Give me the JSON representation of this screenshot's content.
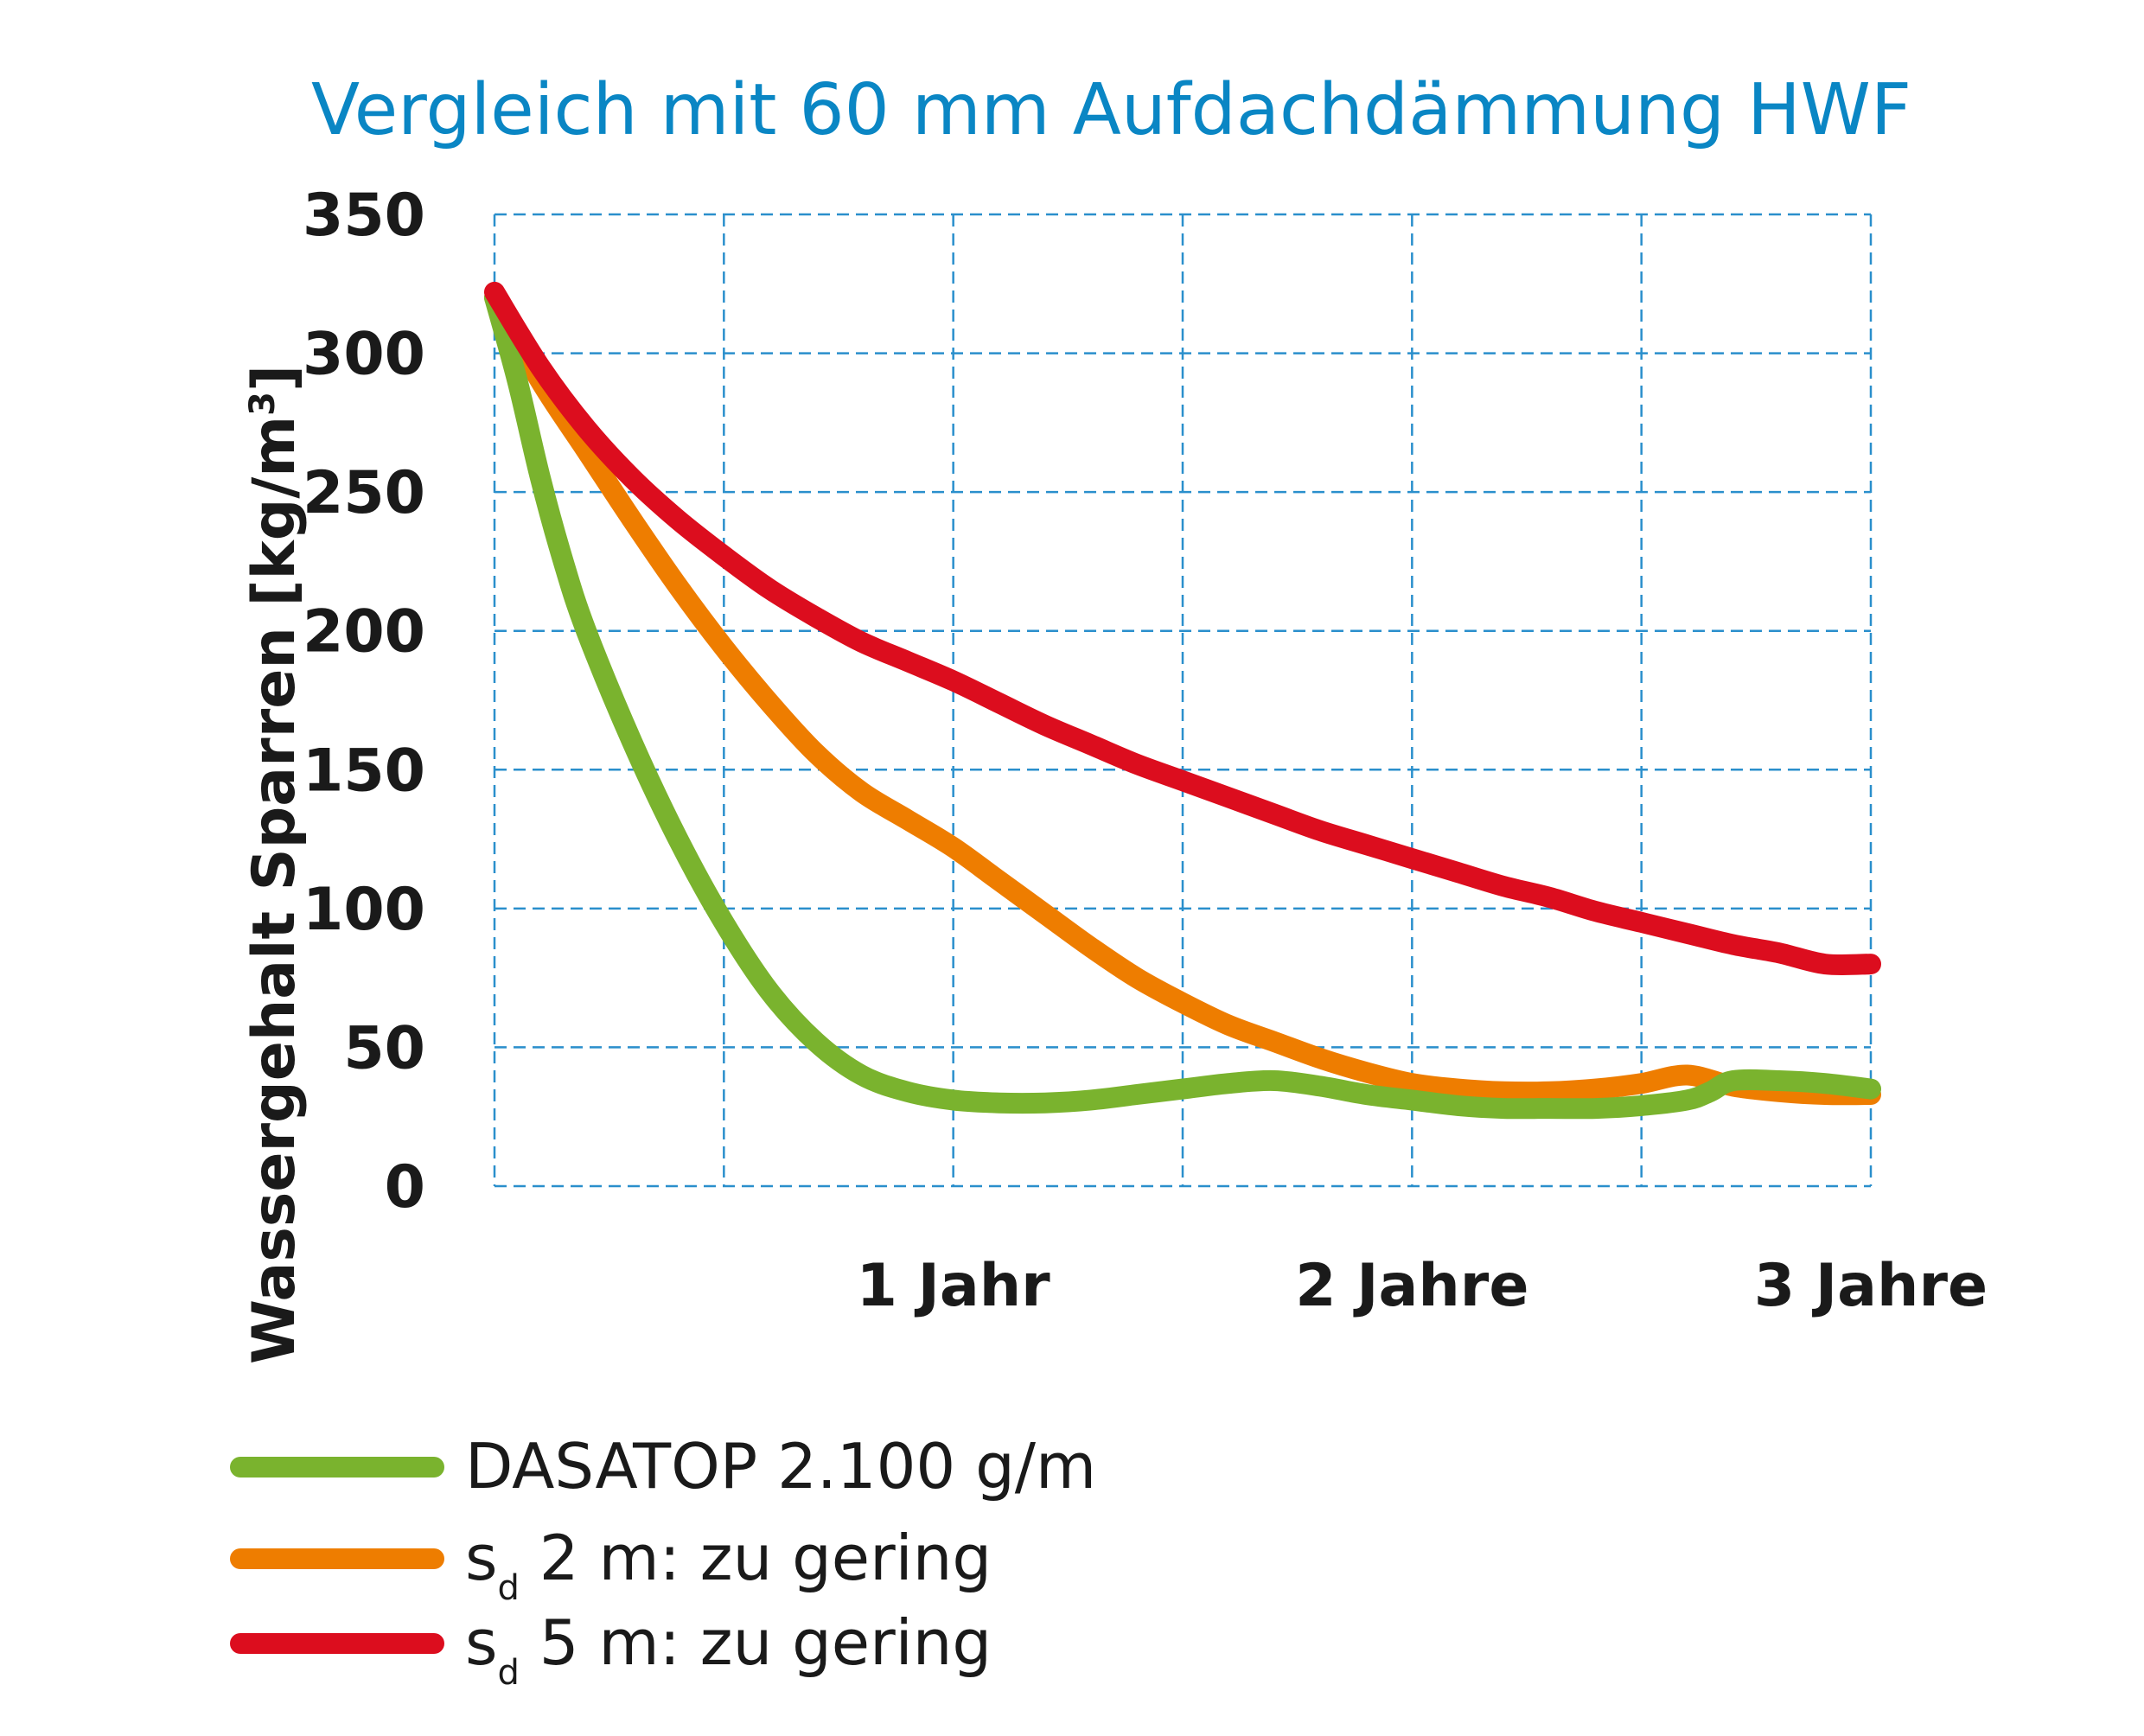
{
  "chart_data": {
    "type": "line",
    "title": "Vergleich mit 60 mm Aufdachdämmung HWF",
    "ylabel": "Wassergehalt Sparren [kg/m",
    "ylabel_sup": "3",
    "ylabel_end": "]",
    "xlabel": "",
    "ylim": [
      0,
      350
    ],
    "xlim": [
      0,
      3
    ],
    "yticks": [
      0,
      50,
      100,
      150,
      200,
      250,
      300,
      350
    ],
    "ytick_labels": [
      "0",
      "50",
      "100",
      "150",
      "200",
      "250",
      "300",
      "350"
    ],
    "xgrid": [
      0,
      0.5,
      1,
      1.5,
      2,
      2.5,
      3
    ],
    "xticks": [
      1,
      2,
      3
    ],
    "xtick_labels": [
      "1 Jahr",
      "2 Jahre",
      "3 Jahre"
    ],
    "grid": true,
    "grid_color": "#2a8fcc",
    "series": [
      {
        "name": "DASATOP 2.100 g/m",
        "legend_main": "DASATOP 2.100 g/m",
        "color": "#7ab32e",
        "points": [
          [
            0,
            320
          ],
          [
            0.05,
            290
          ],
          [
            0.1,
            255
          ],
          [
            0.15,
            225
          ],
          [
            0.2,
            200
          ],
          [
            0.3,
            160
          ],
          [
            0.4,
            125
          ],
          [
            0.5,
            95
          ],
          [
            0.6,
            70
          ],
          [
            0.7,
            52
          ],
          [
            0.8,
            40
          ],
          [
            0.9,
            34
          ],
          [
            1.0,
            31
          ],
          [
            1.1,
            30
          ],
          [
            1.2,
            30
          ],
          [
            1.3,
            31
          ],
          [
            1.4,
            33
          ],
          [
            1.5,
            35
          ],
          [
            1.6,
            37
          ],
          [
            1.7,
            38
          ],
          [
            1.8,
            36
          ],
          [
            1.9,
            33
          ],
          [
            2.0,
            31
          ],
          [
            2.1,
            29
          ],
          [
            2.2,
            28
          ],
          [
            2.3,
            28
          ],
          [
            2.4,
            28
          ],
          [
            2.5,
            29
          ],
          [
            2.6,
            31
          ],
          [
            2.65,
            34
          ],
          [
            2.7,
            38
          ],
          [
            2.8,
            38
          ],
          [
            2.9,
            37
          ],
          [
            3.0,
            35
          ]
        ]
      },
      {
        "name": "sd 2 m: zu gering",
        "legend_main": "s",
        "legend_sub": "d",
        "legend_rest": " 2 m: zu gering",
        "color": "#ee7d00",
        "points": [
          [
            0,
            320
          ],
          [
            0.1,
            290
          ],
          [
            0.2,
            265
          ],
          [
            0.3,
            240
          ],
          [
            0.4,
            216
          ],
          [
            0.5,
            194
          ],
          [
            0.6,
            174
          ],
          [
            0.7,
            156
          ],
          [
            0.8,
            142
          ],
          [
            0.9,
            132
          ],
          [
            1.0,
            122
          ],
          [
            1.1,
            110
          ],
          [
            1.2,
            98
          ],
          [
            1.3,
            86
          ],
          [
            1.4,
            75
          ],
          [
            1.5,
            66
          ],
          [
            1.6,
            58
          ],
          [
            1.7,
            52
          ],
          [
            1.8,
            46
          ],
          [
            1.9,
            41
          ],
          [
            2.0,
            37
          ],
          [
            2.1,
            35
          ],
          [
            2.2,
            34
          ],
          [
            2.3,
            34
          ],
          [
            2.4,
            35
          ],
          [
            2.5,
            37
          ],
          [
            2.6,
            40
          ],
          [
            2.7,
            36
          ],
          [
            2.8,
            34
          ],
          [
            2.9,
            33
          ],
          [
            3.0,
            33
          ]
        ]
      },
      {
        "name": "sd 5 m: zu gering",
        "legend_main": "s",
        "legend_sub": "d",
        "legend_rest": " 5 m: zu gering",
        "color": "#dc0d1e",
        "points": [
          [
            0,
            322
          ],
          [
            0.1,
            295
          ],
          [
            0.2,
            273
          ],
          [
            0.3,
            255
          ],
          [
            0.4,
            240
          ],
          [
            0.5,
            227
          ],
          [
            0.6,
            215
          ],
          [
            0.7,
            205
          ],
          [
            0.8,
            196
          ],
          [
            0.9,
            189
          ],
          [
            1.0,
            182
          ],
          [
            1.1,
            174
          ],
          [
            1.2,
            166
          ],
          [
            1.3,
            159
          ],
          [
            1.4,
            152
          ],
          [
            1.5,
            146
          ],
          [
            1.6,
            140
          ],
          [
            1.7,
            134
          ],
          [
            1.8,
            128
          ],
          [
            1.9,
            123
          ],
          [
            2.0,
            118
          ],
          [
            2.1,
            113
          ],
          [
            2.2,
            108
          ],
          [
            2.3,
            104
          ],
          [
            2.4,
            99
          ],
          [
            2.5,
            95
          ],
          [
            2.6,
            91
          ],
          [
            2.7,
            87
          ],
          [
            2.8,
            84
          ],
          [
            2.9,
            80
          ],
          [
            3.0,
            80
          ]
        ]
      }
    ]
  }
}
